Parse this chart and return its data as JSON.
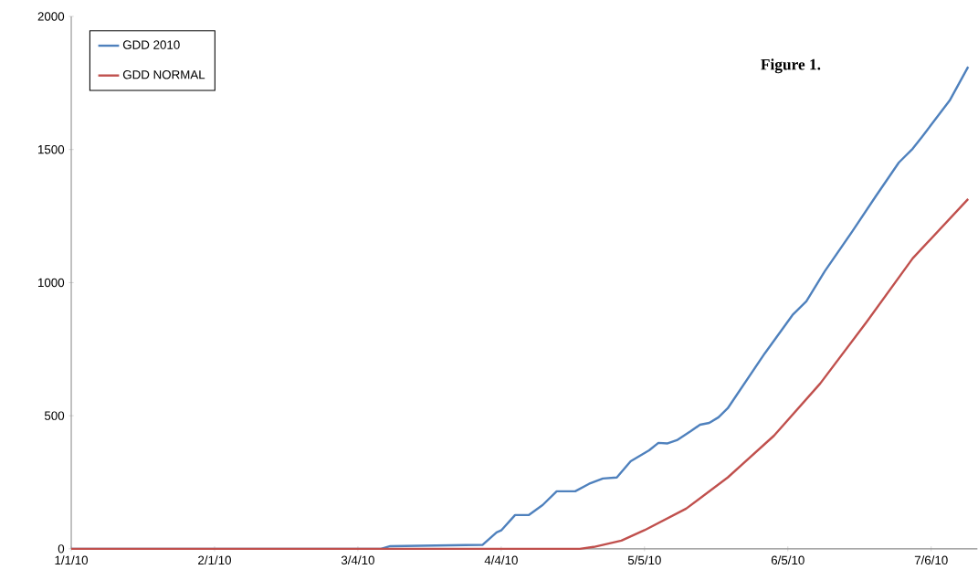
{
  "chart_data": {
    "type": "line",
    "xlim": [
      "2010-01-01",
      "2010-07-16"
    ],
    "xticks": [
      {
        "value": "2010-01-01",
        "label": "1/1/10"
      },
      {
        "value": "2010-02-01",
        "label": "2/1/10"
      },
      {
        "value": "2010-03-04",
        "label": "3/4/10"
      },
      {
        "value": "2010-04-04",
        "label": "4/4/10"
      },
      {
        "value": "2010-05-05",
        "label": "5/5/10"
      },
      {
        "value": "2010-06-05",
        "label": "6/5/10"
      },
      {
        "value": "2010-07-06",
        "label": "7/6/10"
      }
    ],
    "ylim": [
      0,
      2000
    ],
    "yticks": [
      0,
      500,
      1000,
      1500,
      2000
    ],
    "grid": false,
    "legend": "top left",
    "marker": "none",
    "line_style": "solid",
    "annotations": [
      "Figure 1."
    ],
    "series": [
      {
        "name": "GDD 2010",
        "color": "#4f81bd",
        "x": [
          "2010-01-01",
          "2010-03-09",
          "2010-03-11",
          "2010-03-31",
          "2010-04-03",
          "2010-04-04",
          "2010-04-07",
          "2010-04-10",
          "2010-04-13",
          "2010-04-16",
          "2010-04-20",
          "2010-04-23",
          "2010-04-26",
          "2010-04-29",
          "2010-05-02",
          "2010-05-06",
          "2010-05-08",
          "2010-05-10",
          "2010-05-12",
          "2010-05-15",
          "2010-05-17",
          "2010-05-19",
          "2010-05-21",
          "2010-05-23",
          "2010-05-27",
          "2010-05-31",
          "2010-06-06",
          "2010-06-09",
          "2010-06-13",
          "2010-06-19",
          "2010-06-24",
          "2010-06-29",
          "2010-07-02",
          "2010-07-04",
          "2010-07-10",
          "2010-07-14"
        ],
        "values": [
          0,
          0,
          10,
          15,
          62,
          69,
          127,
          127,
          165,
          216,
          216,
          244,
          264,
          268,
          329,
          370,
          398,
          396,
          408,
          442,
          466,
          473,
          494,
          528,
          631,
          734,
          878,
          930,
          1043,
          1194,
          1324,
          1451,
          1503,
          1547,
          1684,
          1811
        ]
      },
      {
        "name": "GDD NORMAL",
        "color": "#c0504d",
        "x": [
          "2010-01-01",
          "2010-04-21",
          "2010-04-24",
          "2010-04-30",
          "2010-05-05",
          "2010-05-14",
          "2010-05-23",
          "2010-06-02",
          "2010-06-12",
          "2010-06-22",
          "2010-07-02",
          "2010-07-14"
        ],
        "values": [
          0,
          0,
          7,
          31,
          70,
          151,
          268,
          425,
          621,
          851,
          1091,
          1314
        ]
      }
    ]
  }
}
